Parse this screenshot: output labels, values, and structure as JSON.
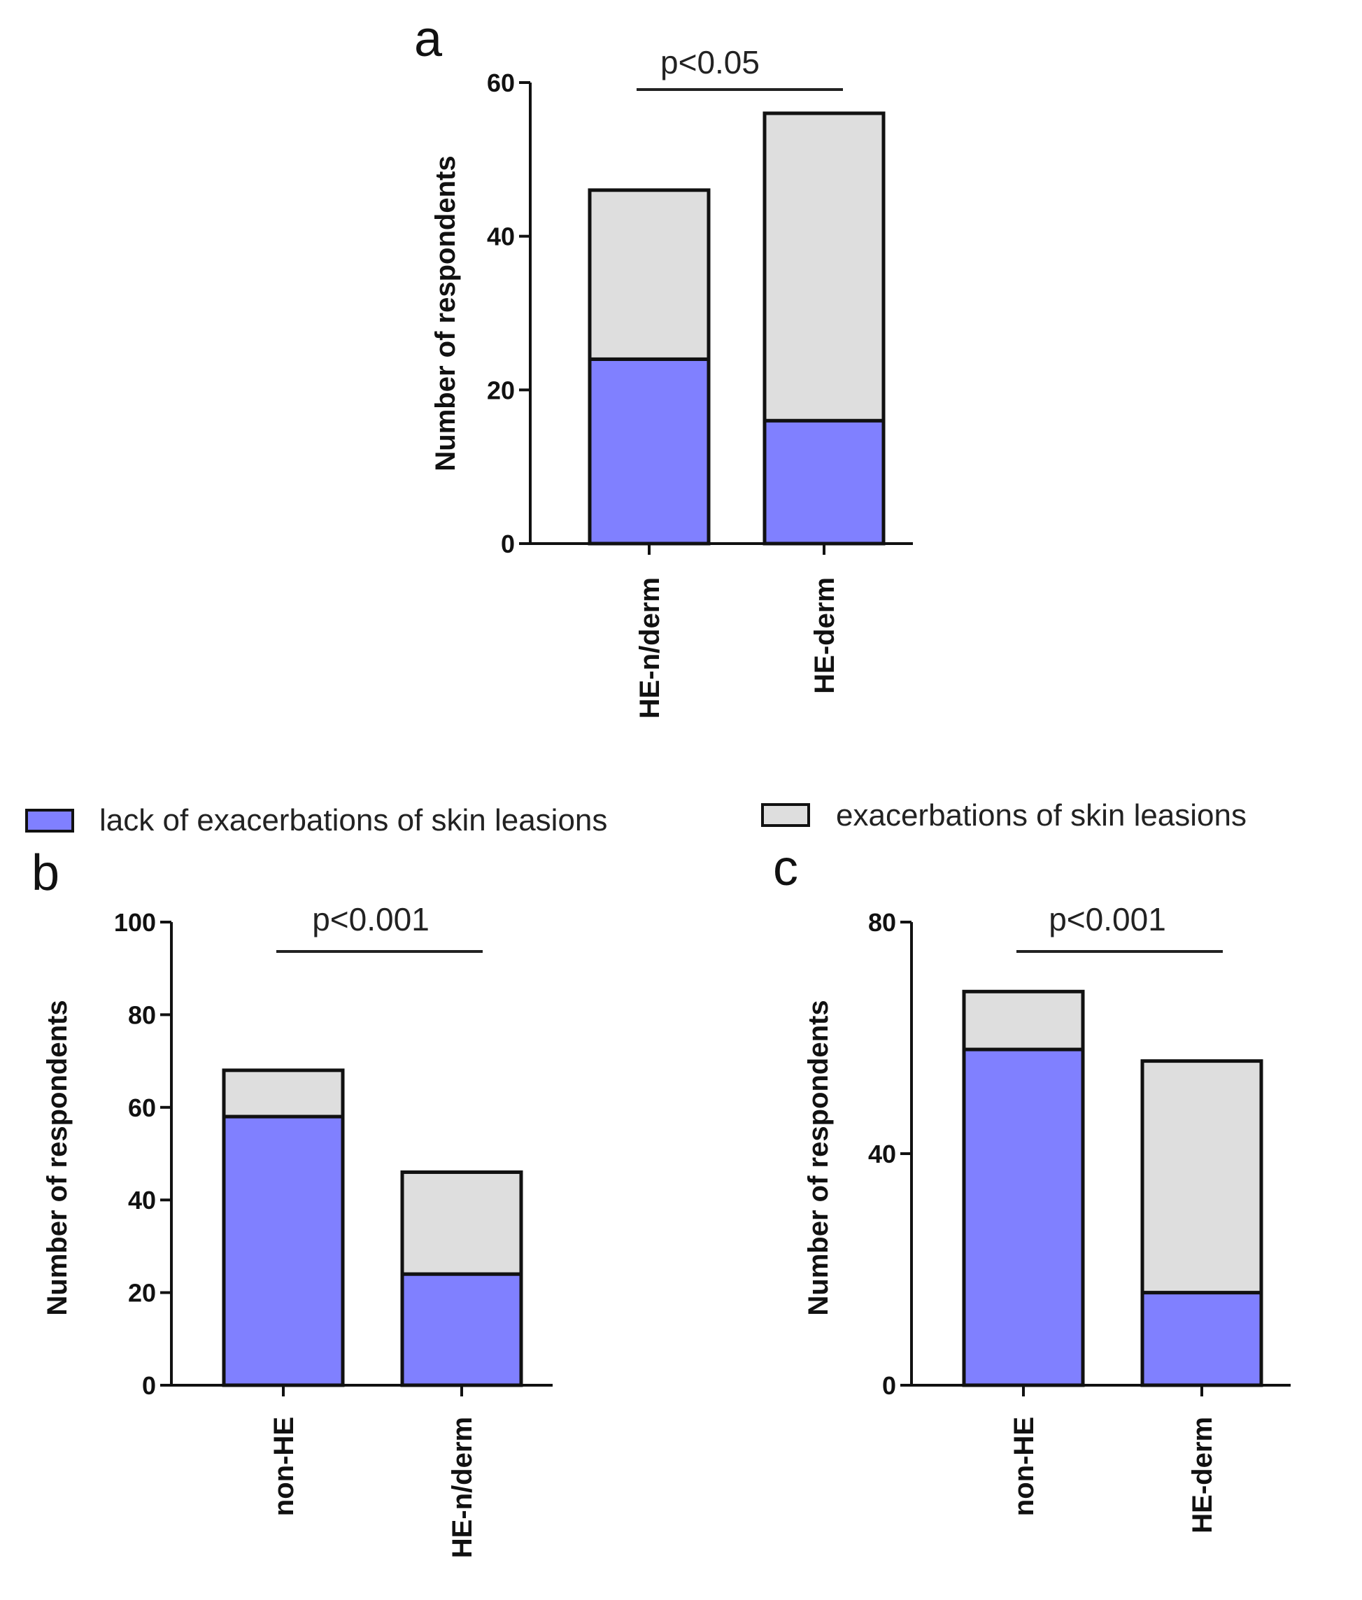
{
  "legend": {
    "items": [
      {
        "label": "lack of exacerbations of skin leasions",
        "color": "#8080ff"
      },
      {
        "label": "exacerbations of skin leasions",
        "color": "#dedede"
      }
    ]
  },
  "chart_data": [
    {
      "id": "a",
      "panel_label": "a",
      "type": "bar",
      "stacked": true,
      "categories": [
        "HE-n/derm",
        "HE-derm"
      ],
      "series": [
        {
          "name": "lack of exacerbations of skin leasions",
          "color": "#8080ff",
          "values": [
            24,
            16
          ]
        },
        {
          "name": "exacerbations of skin leasions",
          "color": "#dedede",
          "values": [
            22,
            40
          ]
        }
      ],
      "ylabel": "Number of respondents",
      "ylim": [
        0,
        60
      ],
      "yticks": [
        0,
        20,
        40,
        60
      ],
      "annotation": "p<0.05"
    },
    {
      "id": "b",
      "panel_label": "b",
      "type": "bar",
      "stacked": true,
      "categories": [
        "non-HE",
        "HE-n/derm"
      ],
      "series": [
        {
          "name": "lack of exacerbations of skin leasions",
          "color": "#8080ff",
          "values": [
            58,
            24
          ]
        },
        {
          "name": "exacerbations of skin leasions",
          "color": "#dedede",
          "values": [
            10,
            22
          ]
        }
      ],
      "ylabel": "Number of respondents",
      "ylim": [
        0,
        100
      ],
      "yticks": [
        0,
        20,
        40,
        60,
        80,
        100
      ],
      "annotation": "p<0.001"
    },
    {
      "id": "c",
      "panel_label": "c",
      "type": "bar",
      "stacked": true,
      "categories": [
        "non-HE",
        "HE-derm"
      ],
      "series": [
        {
          "name": "lack of exacerbations of skin leasions",
          "color": "#8080ff",
          "values": [
            58,
            16
          ]
        },
        {
          "name": "exacerbations of skin leasions",
          "color": "#dedede",
          "values": [
            10,
            40
          ]
        }
      ],
      "ylabel": "Number of respondents",
      "ylim": [
        0,
        80
      ],
      "yticks": [
        0,
        40,
        80
      ],
      "annotation": "p<0.001"
    }
  ]
}
